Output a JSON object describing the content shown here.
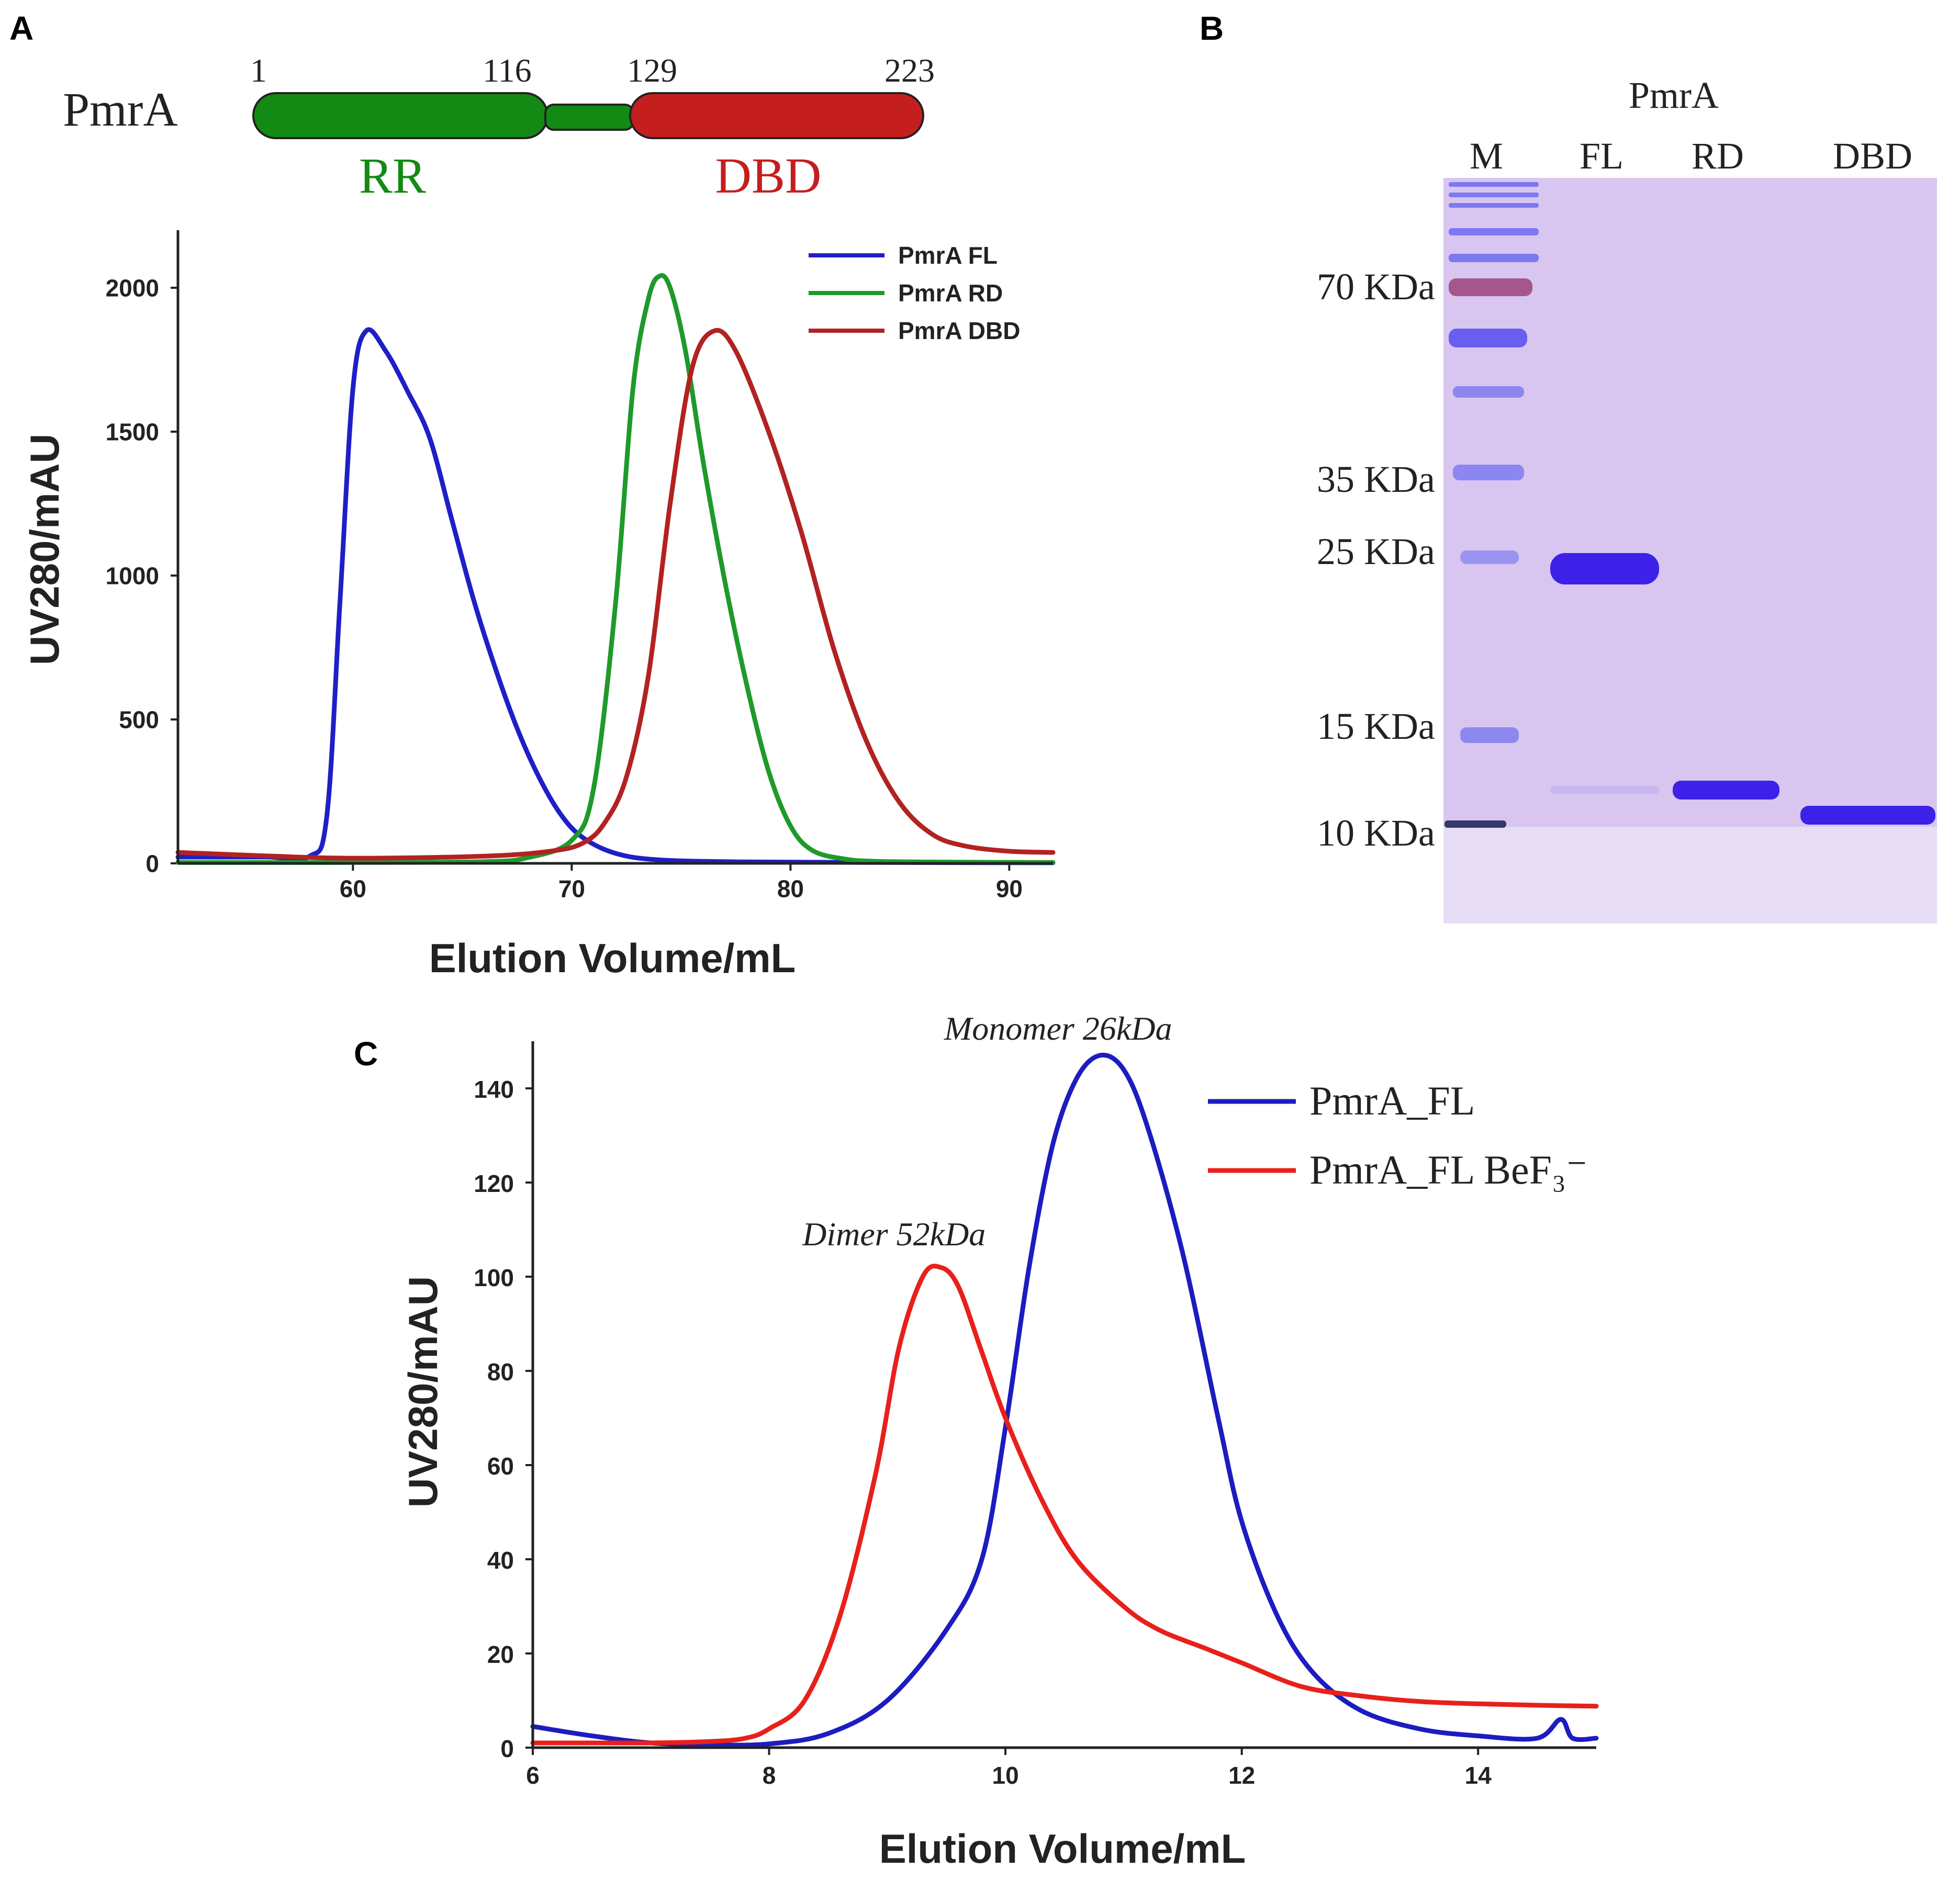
{
  "panels": {
    "a": {
      "letter": "A"
    },
    "b": {
      "letter": "B"
    },
    "c": {
      "letter": "C"
    }
  },
  "domain_diagram": {
    "protein": "PmrA",
    "residues": [
      "1",
      "116",
      "129",
      "223"
    ],
    "domains": [
      {
        "label": "RR",
        "color": "#138a13"
      },
      {
        "label": "DBD",
        "color": "#c41e1e"
      }
    ],
    "linker_color": "#138a13"
  },
  "gel": {
    "header": "PmrA",
    "lanes": [
      "M",
      "FL",
      "RD",
      "DBD"
    ],
    "markers": [
      "70 KDa",
      "35 KDa",
      "25 KDa",
      "15 KDa",
      "10 KDa"
    ],
    "background_color": "#d8c6f0",
    "band_color": "#3d21e8"
  },
  "chart_data": [
    {
      "id": "panel-a",
      "type": "line",
      "title": "",
      "xlabel": "Elution Volume/mL",
      "ylabel": "UV280/mAU",
      "xlim": [
        52,
        92
      ],
      "ylim": [
        0,
        2200
      ],
      "xticks": [
        60,
        70,
        80,
        90
      ],
      "yticks": [
        0,
        500,
        1000,
        1500,
        2000
      ],
      "legend_position": "top-right",
      "series": [
        {
          "name": "PmrA FL",
          "color": "#1f1fc8",
          "x": [
            52,
            56,
            58,
            58.8,
            59.4,
            60,
            60.6,
            61.5,
            62.5,
            63.5,
            64.5,
            65.5,
            66.5,
            67.5,
            68.5,
            69.5,
            70.5,
            72,
            74,
            78,
            84,
            92
          ],
          "y": [
            22,
            22,
            24,
            160,
            900,
            1650,
            1850,
            1780,
            1640,
            1480,
            1200,
            920,
            680,
            470,
            300,
            170,
            90,
            35,
            12,
            5,
            3,
            2
          ]
        },
        {
          "name": "PmrA RD",
          "color": "#1f9a2a",
          "x": [
            52,
            60,
            66,
            68,
            70,
            71,
            72,
            72.8,
            73.5,
            74,
            74.5,
            75.2,
            76,
            77,
            78,
            79,
            80,
            81,
            82.5,
            84,
            88,
            92
          ],
          "y": [
            3,
            3,
            6,
            20,
            80,
            260,
            900,
            1650,
            1960,
            2040,
            2000,
            1780,
            1400,
            980,
            620,
            320,
            130,
            45,
            15,
            7,
            4,
            3
          ]
        },
        {
          "name": "PmrA DBD",
          "color": "#b22222",
          "x": [
            52,
            56,
            60,
            66,
            69,
            70.5,
            71.5,
            72.5,
            73.5,
            74.5,
            75.5,
            76.5,
            77.5,
            79,
            80.5,
            82,
            83.5,
            85,
            86.5,
            88,
            90,
            92
          ],
          "y": [
            38,
            26,
            18,
            25,
            42,
            70,
            140,
            300,
            650,
            1250,
            1720,
            1850,
            1780,
            1500,
            1150,
            740,
            420,
            210,
            100,
            60,
            42,
            38
          ]
        }
      ]
    },
    {
      "id": "panel-c",
      "type": "line",
      "title": "",
      "xlabel": "Elution Volume/mL",
      "ylabel": "UV280/mAU",
      "xlim": [
        6,
        15
      ],
      "ylim": [
        0,
        150
      ],
      "xticks": [
        6,
        8,
        10,
        12,
        14
      ],
      "yticks": [
        0,
        20,
        40,
        60,
        80,
        100,
        120,
        140
      ],
      "legend_position": "top-right",
      "legend_labels": [
        "PmrA_FL",
        "PmrA_FL BeF₃⁻"
      ],
      "annotations": [
        {
          "text": "Monomer 26kDa",
          "x": 10.8,
          "y": 147
        },
        {
          "text": "Dimer 52kDa",
          "x": 9.5,
          "y": 102
        }
      ],
      "series": [
        {
          "name": "PmrA_FL",
          "color": "#1c1cc0",
          "x": [
            6,
            6.5,
            7,
            7.5,
            8,
            8.5,
            9,
            9.5,
            9.8,
            10,
            10.2,
            10.4,
            10.6,
            10.8,
            11,
            11.2,
            11.5,
            11.8,
            12,
            12.3,
            12.6,
            13,
            13.5,
            14,
            14.5,
            14.7,
            14.8,
            15
          ],
          "y": [
            4.5,
            2.5,
            1,
            0.6,
            0.8,
            3,
            10,
            25,
            40,
            68,
            102,
            128,
            142,
            147,
            144,
            132,
            105,
            70,
            48,
            28,
            16,
            8,
            4,
            2.5,
            2,
            6,
            2,
            2
          ]
        },
        {
          "name": "PmrA_FL BeF₃⁻",
          "color": "#e8201c",
          "x": [
            6,
            6.5,
            7,
            7.5,
            7.8,
            8,
            8.3,
            8.6,
            8.9,
            9.1,
            9.3,
            9.45,
            9.6,
            9.8,
            10,
            10.3,
            10.6,
            11,
            11.3,
            11.7,
            12,
            12.5,
            13,
            13.5,
            14,
            14.5,
            15
          ],
          "y": [
            1,
            1,
            1,
            1.3,
            2,
            4,
            10,
            28,
            58,
            85,
            100,
            102,
            98,
            84,
            70,
            53,
            40,
            30,
            25,
            21,
            18,
            13,
            11,
            9.8,
            9.3,
            9,
            8.8
          ]
        }
      ]
    }
  ]
}
